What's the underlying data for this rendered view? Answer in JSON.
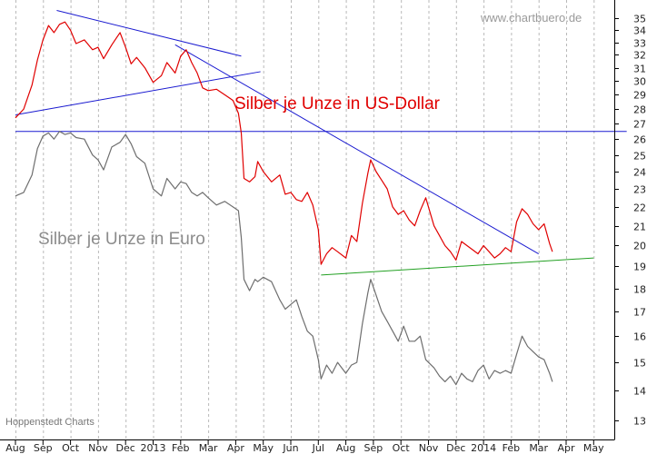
{
  "chart_data": {
    "type": "line",
    "watermark": "www.chartbuero.de",
    "source": "Hoppenstedt Charts",
    "x_tick_labels": [
      "Aug",
      "Sep",
      "Oct",
      "Nov",
      "Dec",
      "2013",
      "Feb",
      "Mar",
      "Apr",
      "May",
      "Jun",
      "Jul",
      "Aug",
      "Sep",
      "Oct",
      "Nov",
      "Dec",
      "2014",
      "Feb",
      "Mar",
      "Apr",
      "May"
    ],
    "y_ticks": [
      13,
      14,
      15,
      16,
      17,
      18,
      19,
      20,
      21,
      22,
      23,
      24,
      25,
      26,
      27,
      28,
      29,
      30,
      31,
      32,
      33,
      34,
      35
    ],
    "y_scale": "log",
    "ylim": [
      12.6,
      35.5
    ],
    "grid": "vertical-dashed",
    "series": [
      {
        "name": "Silber je Unze in US-Dollar",
        "color": "#e00000",
        "points": [
          [
            0,
            27.4
          ],
          [
            0.3,
            28.0
          ],
          [
            0.6,
            29.7
          ],
          [
            0.8,
            31.6
          ],
          [
            1.0,
            33.2
          ],
          [
            1.2,
            34.4
          ],
          [
            1.4,
            33.8
          ],
          [
            1.6,
            34.5
          ],
          [
            1.8,
            34.7
          ],
          [
            2.0,
            34.0
          ],
          [
            2.2,
            32.9
          ],
          [
            2.5,
            33.2
          ],
          [
            2.8,
            32.4
          ],
          [
            3.0,
            32.6
          ],
          [
            3.2,
            31.7
          ],
          [
            3.5,
            32.8
          ],
          [
            3.8,
            33.8
          ],
          [
            4.0,
            32.6
          ],
          [
            4.2,
            31.3
          ],
          [
            4.4,
            31.8
          ],
          [
            4.7,
            31.0
          ],
          [
            5.0,
            29.9
          ],
          [
            5.3,
            30.4
          ],
          [
            5.5,
            31.4
          ],
          [
            5.8,
            30.6
          ],
          [
            6.0,
            31.9
          ],
          [
            6.2,
            32.4
          ],
          [
            6.4,
            31.4
          ],
          [
            6.6,
            30.6
          ],
          [
            6.8,
            29.5
          ],
          [
            7.0,
            29.3
          ],
          [
            7.3,
            29.4
          ],
          [
            7.6,
            29.0
          ],
          [
            7.9,
            28.6
          ],
          [
            8.1,
            27.7
          ],
          [
            8.2,
            26.4
          ],
          [
            8.3,
            23.6
          ],
          [
            8.5,
            23.4
          ],
          [
            8.7,
            23.7
          ],
          [
            8.8,
            24.6
          ],
          [
            9.0,
            24.0
          ],
          [
            9.3,
            23.4
          ],
          [
            9.6,
            23.8
          ],
          [
            9.8,
            22.7
          ],
          [
            10.0,
            22.8
          ],
          [
            10.2,
            22.4
          ],
          [
            10.4,
            22.3
          ],
          [
            10.6,
            22.8
          ],
          [
            10.8,
            22.1
          ],
          [
            11.0,
            20.8
          ],
          [
            11.1,
            19.1
          ],
          [
            11.3,
            19.6
          ],
          [
            11.5,
            19.9
          ],
          [
            11.7,
            19.7
          ],
          [
            12.0,
            19.4
          ],
          [
            12.2,
            20.5
          ],
          [
            12.4,
            20.2
          ],
          [
            12.6,
            22.2
          ],
          [
            12.8,
            23.9
          ],
          [
            12.9,
            24.7
          ],
          [
            13.1,
            24.0
          ],
          [
            13.3,
            23.5
          ],
          [
            13.5,
            23.0
          ],
          [
            13.7,
            22.0
          ],
          [
            13.9,
            21.6
          ],
          [
            14.1,
            21.8
          ],
          [
            14.3,
            21.3
          ],
          [
            14.5,
            21.0
          ],
          [
            14.7,
            21.8
          ],
          [
            14.9,
            22.5
          ],
          [
            15.0,
            22.0
          ],
          [
            15.2,
            21.0
          ],
          [
            15.4,
            20.5
          ],
          [
            15.6,
            20.0
          ],
          [
            15.8,
            19.7
          ],
          [
            16.0,
            19.3
          ],
          [
            16.2,
            20.2
          ],
          [
            16.4,
            20.0
          ],
          [
            16.6,
            19.8
          ],
          [
            16.8,
            19.6
          ],
          [
            17.0,
            20.0
          ],
          [
            17.2,
            19.7
          ],
          [
            17.4,
            19.4
          ],
          [
            17.6,
            19.6
          ],
          [
            17.8,
            19.9
          ],
          [
            18.0,
            19.7
          ],
          [
            18.2,
            21.2
          ],
          [
            18.4,
            21.9
          ],
          [
            18.6,
            21.6
          ],
          [
            18.8,
            21.1
          ],
          [
            19.0,
            20.8
          ],
          [
            19.2,
            21.1
          ],
          [
            19.4,
            20.1
          ],
          [
            19.5,
            19.7
          ]
        ]
      },
      {
        "name": "Silber je Unze in Euro",
        "color": "#6e6e6e",
        "points": [
          [
            0,
            22.6
          ],
          [
            0.3,
            22.8
          ],
          [
            0.6,
            23.8
          ],
          [
            0.8,
            25.4
          ],
          [
            1.0,
            26.2
          ],
          [
            1.2,
            26.4
          ],
          [
            1.4,
            26.0
          ],
          [
            1.6,
            26.5
          ],
          [
            1.8,
            26.3
          ],
          [
            2.0,
            26.4
          ],
          [
            2.2,
            26.1
          ],
          [
            2.5,
            26.0
          ],
          [
            2.8,
            25.0
          ],
          [
            3.0,
            24.7
          ],
          [
            3.2,
            24.1
          ],
          [
            3.5,
            25.5
          ],
          [
            3.8,
            25.8
          ],
          [
            4.0,
            26.3
          ],
          [
            4.2,
            25.7
          ],
          [
            4.4,
            24.9
          ],
          [
            4.7,
            24.5
          ],
          [
            5.0,
            23.0
          ],
          [
            5.3,
            22.6
          ],
          [
            5.5,
            23.6
          ],
          [
            5.8,
            23.0
          ],
          [
            6.0,
            23.4
          ],
          [
            6.2,
            23.3
          ],
          [
            6.4,
            22.8
          ],
          [
            6.6,
            22.6
          ],
          [
            6.8,
            22.8
          ],
          [
            7.0,
            22.5
          ],
          [
            7.3,
            22.1
          ],
          [
            7.6,
            22.3
          ],
          [
            7.9,
            22.0
          ],
          [
            8.1,
            21.8
          ],
          [
            8.2,
            20.4
          ],
          [
            8.3,
            18.4
          ],
          [
            8.5,
            17.9
          ],
          [
            8.7,
            18.4
          ],
          [
            8.8,
            18.3
          ],
          [
            9.0,
            18.5
          ],
          [
            9.3,
            18.3
          ],
          [
            9.6,
            17.5
          ],
          [
            9.8,
            17.1
          ],
          [
            10.0,
            17.3
          ],
          [
            10.2,
            17.5
          ],
          [
            10.4,
            16.8
          ],
          [
            10.6,
            16.2
          ],
          [
            10.8,
            16.0
          ],
          [
            11.0,
            15.1
          ],
          [
            11.1,
            14.4
          ],
          [
            11.3,
            14.9
          ],
          [
            11.5,
            14.6
          ],
          [
            11.7,
            15.0
          ],
          [
            12.0,
            14.6
          ],
          [
            12.2,
            14.9
          ],
          [
            12.4,
            15.0
          ],
          [
            12.6,
            16.5
          ],
          [
            12.8,
            17.8
          ],
          [
            12.9,
            18.4
          ],
          [
            13.1,
            17.7
          ],
          [
            13.3,
            17.0
          ],
          [
            13.5,
            16.6
          ],
          [
            13.7,
            16.2
          ],
          [
            13.9,
            15.8
          ],
          [
            14.1,
            16.4
          ],
          [
            14.3,
            15.8
          ],
          [
            14.5,
            15.8
          ],
          [
            14.7,
            16.0
          ],
          [
            14.9,
            15.1
          ],
          [
            15.0,
            15.0
          ],
          [
            15.2,
            14.8
          ],
          [
            15.4,
            14.5
          ],
          [
            15.6,
            14.3
          ],
          [
            15.8,
            14.5
          ],
          [
            16.0,
            14.2
          ],
          [
            16.2,
            14.6
          ],
          [
            16.4,
            14.4
          ],
          [
            16.6,
            14.3
          ],
          [
            16.8,
            14.7
          ],
          [
            17.0,
            14.9
          ],
          [
            17.2,
            14.4
          ],
          [
            17.4,
            14.7
          ],
          [
            17.6,
            14.6
          ],
          [
            17.8,
            14.7
          ],
          [
            18.0,
            14.6
          ],
          [
            18.2,
            15.3
          ],
          [
            18.4,
            16.0
          ],
          [
            18.6,
            15.6
          ],
          [
            18.8,
            15.4
          ],
          [
            19.0,
            15.2
          ],
          [
            19.2,
            15.1
          ],
          [
            19.4,
            14.6
          ],
          [
            19.5,
            14.3
          ]
        ]
      }
    ],
    "trendlines": [
      {
        "color": "#1a1ad0",
        "from": [
          1.5,
          35.7
        ],
        "to": [
          8.2,
          31.9
        ]
      },
      {
        "color": "#1a1ad0",
        "from": [
          0,
          27.6
        ],
        "to": [
          8.9,
          30.7
        ]
      },
      {
        "color": "#1a1ad0",
        "from": [
          5.8,
          32.8
        ],
        "to": [
          19.0,
          19.6
        ]
      },
      {
        "color": "#1a1ad0",
        "from": [
          0,
          26.5
        ],
        "to": [
          22.2,
          26.5
        ]
      },
      {
        "color": "#22a022",
        "from": [
          11.1,
          18.6
        ],
        "to": [
          21.0,
          19.4
        ]
      }
    ]
  }
}
